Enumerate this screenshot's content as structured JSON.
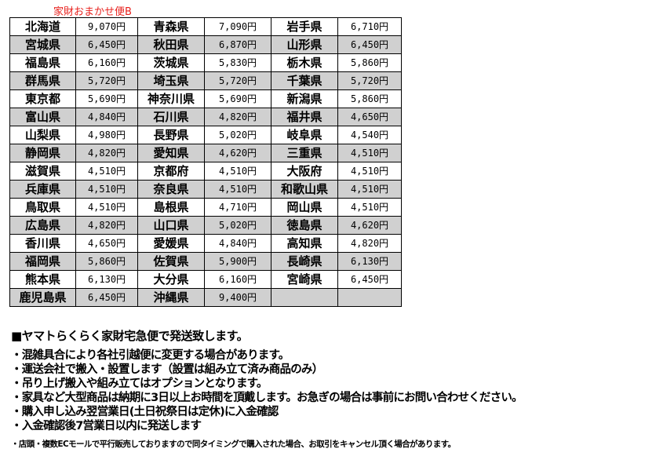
{
  "title": "家財おまかせ便B",
  "table": {
    "rows": [
      [
        [
          "北海道",
          "9,070円"
        ],
        [
          "青森県",
          "7,090円"
        ],
        [
          "岩手県",
          "6,710円"
        ]
      ],
      [
        [
          "宮城県",
          "6,450円"
        ],
        [
          "秋田県",
          "6,870円"
        ],
        [
          "山形県",
          "6,450円"
        ]
      ],
      [
        [
          "福島県",
          "6,160円"
        ],
        [
          "茨城県",
          "5,830円"
        ],
        [
          "栃木県",
          "5,860円"
        ]
      ],
      [
        [
          "群馬県",
          "5,720円"
        ],
        [
          "埼玉県",
          "5,720円"
        ],
        [
          "千葉県",
          "5,720円"
        ]
      ],
      [
        [
          "東京都",
          "5,690円"
        ],
        [
          "神奈川県",
          "5,690円"
        ],
        [
          "新潟県",
          "5,860円"
        ]
      ],
      [
        [
          "富山県",
          "4,840円"
        ],
        [
          "石川県",
          "4,820円"
        ],
        [
          "福井県",
          "4,650円"
        ]
      ],
      [
        [
          "山梨県",
          "4,980円"
        ],
        [
          "長野県",
          "5,020円"
        ],
        [
          "岐阜県",
          "4,540円"
        ]
      ],
      [
        [
          "静岡県",
          "4,820円"
        ],
        [
          "愛知県",
          "4,620円"
        ],
        [
          "三重県",
          "4,510円"
        ]
      ],
      [
        [
          "滋賀県",
          "4,510円"
        ],
        [
          "京都府",
          "4,510円"
        ],
        [
          "大阪府",
          "4,510円"
        ]
      ],
      [
        [
          "兵庫県",
          "4,510円"
        ],
        [
          "奈良県",
          "4,510円"
        ],
        [
          "和歌山県",
          "4,510円"
        ]
      ],
      [
        [
          "鳥取県",
          "4,510円"
        ],
        [
          "島根県",
          "4,710円"
        ],
        [
          "岡山県",
          "4,510円"
        ]
      ],
      [
        [
          "広島県",
          "4,820円"
        ],
        [
          "山口県",
          "5,020円"
        ],
        [
          "徳島県",
          "4,620円"
        ]
      ],
      [
        [
          "香川県",
          "4,650円"
        ],
        [
          "愛媛県",
          "4,840円"
        ],
        [
          "高知県",
          "4,820円"
        ]
      ],
      [
        [
          "福岡県",
          "5,860円"
        ],
        [
          "佐賀県",
          "5,900円"
        ],
        [
          "長崎県",
          "6,130円"
        ]
      ],
      [
        [
          "熊本県",
          "6,130円"
        ],
        [
          "大分県",
          "6,160円"
        ],
        [
          "宮崎県",
          "6,450円"
        ]
      ],
      [
        [
          "鹿児島県",
          "6,450円"
        ],
        [
          "沖縄県",
          "9,400円"
        ],
        [
          "",
          ""
        ]
      ]
    ]
  },
  "notes": {
    "heading": "■ヤマトらくらく家財宅急便で発送致します。",
    "lines": [
      "・混雑具合により各社引越便に変更する場合があります。",
      "・運送会社で搬入・設置します（設置は組み立て済み商品のみ）",
      "・吊り上げ搬入や組み立てはオプションとなります。",
      "・家具など大型商品は納期に3日以上お時間を頂戴します。お急ぎの場合は事前にお問い合わせください。",
      "・購入申し込み翌営業日(土日祝祭日は定休)に入金確認",
      "・入金確認後7営業日以内に発送します"
    ],
    "footnote": "・店頭・複数ECモールで平行販売しておりますので同タイミングで購入された場合、お取引をキャンセル頂く場合があります。"
  },
  "colors": {
    "title": "#e8201c",
    "row_gray": "#d0d0d0"
  }
}
